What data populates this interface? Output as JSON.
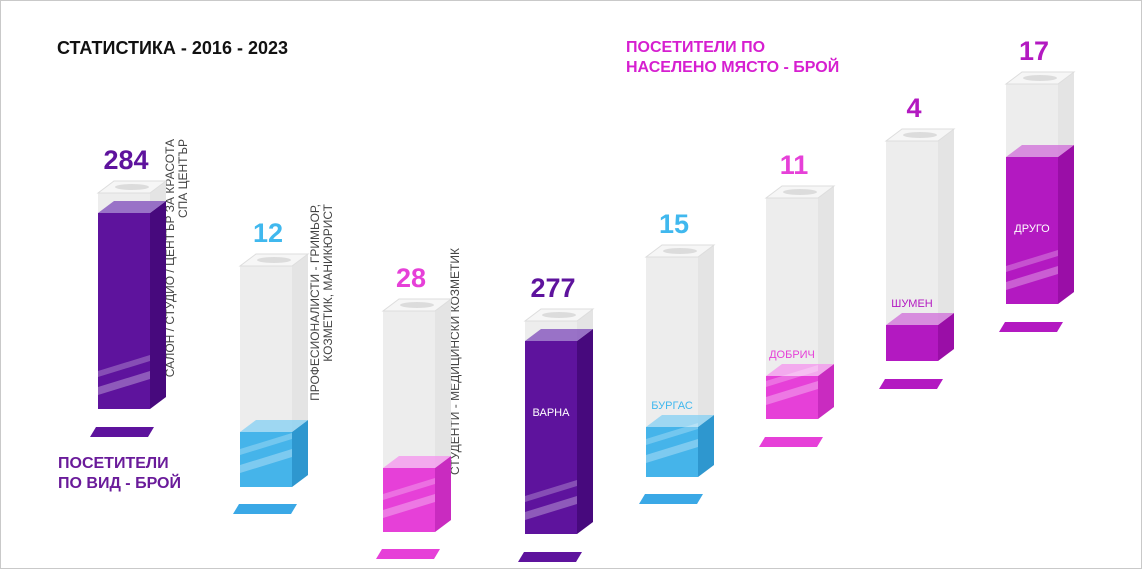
{
  "title": "СТАТИСТИКА - 2016 - 2023",
  "legend_by_type": [
    "ПОСЕТИТЕЛИ",
    "ПО ВИД - БРОЙ"
  ],
  "legend_by_place": [
    "ПОСЕТИТЕЛИ ПО",
    "НАСЕЛЕНО МЯСТО - БРОЙ"
  ],
  "colors": {
    "purple": "#5e139d",
    "blue": "#45b4ea",
    "magenta": "#e640d8",
    "violet": "#b319c1",
    "glass": "#ededed"
  },
  "chart_data": [
    {
      "type": "bar",
      "title": "ПОСЕТИТЕЛИ ПО ВИД - БРОЙ",
      "categories": [
        [
          "САЛОН / СТУДИО / ЦЕНТЪР ЗА КРАСОТА",
          "СПА ЦЕНТЪР"
        ],
        [
          "ПРОФЕСИОНАЛИСТИ - ГРИМЬОР,",
          "КОЗМЕТИК, МАНИКЮРИСТ"
        ],
        [
          "СТУДЕНТИ - МЕДИЦИНСКИ КОЗМЕТИК"
        ]
      ],
      "values": [
        284,
        12,
        28
      ],
      "colors": [
        "purple",
        "blue",
        "magenta"
      ]
    },
    {
      "type": "bar",
      "title": "ПОСЕТИТЕЛИ ПО НАСЕЛЕНО МЯСТО - БРОЙ",
      "categories": [
        "ВАРНА",
        "БУРГАС",
        "ДОБРИЧ",
        "ШУМЕН",
        "ДРУГО"
      ],
      "values": [
        277,
        15,
        11,
        4,
        17
      ],
      "colors": [
        "purple",
        "blue",
        "magenta",
        "violet",
        "violet"
      ]
    }
  ]
}
